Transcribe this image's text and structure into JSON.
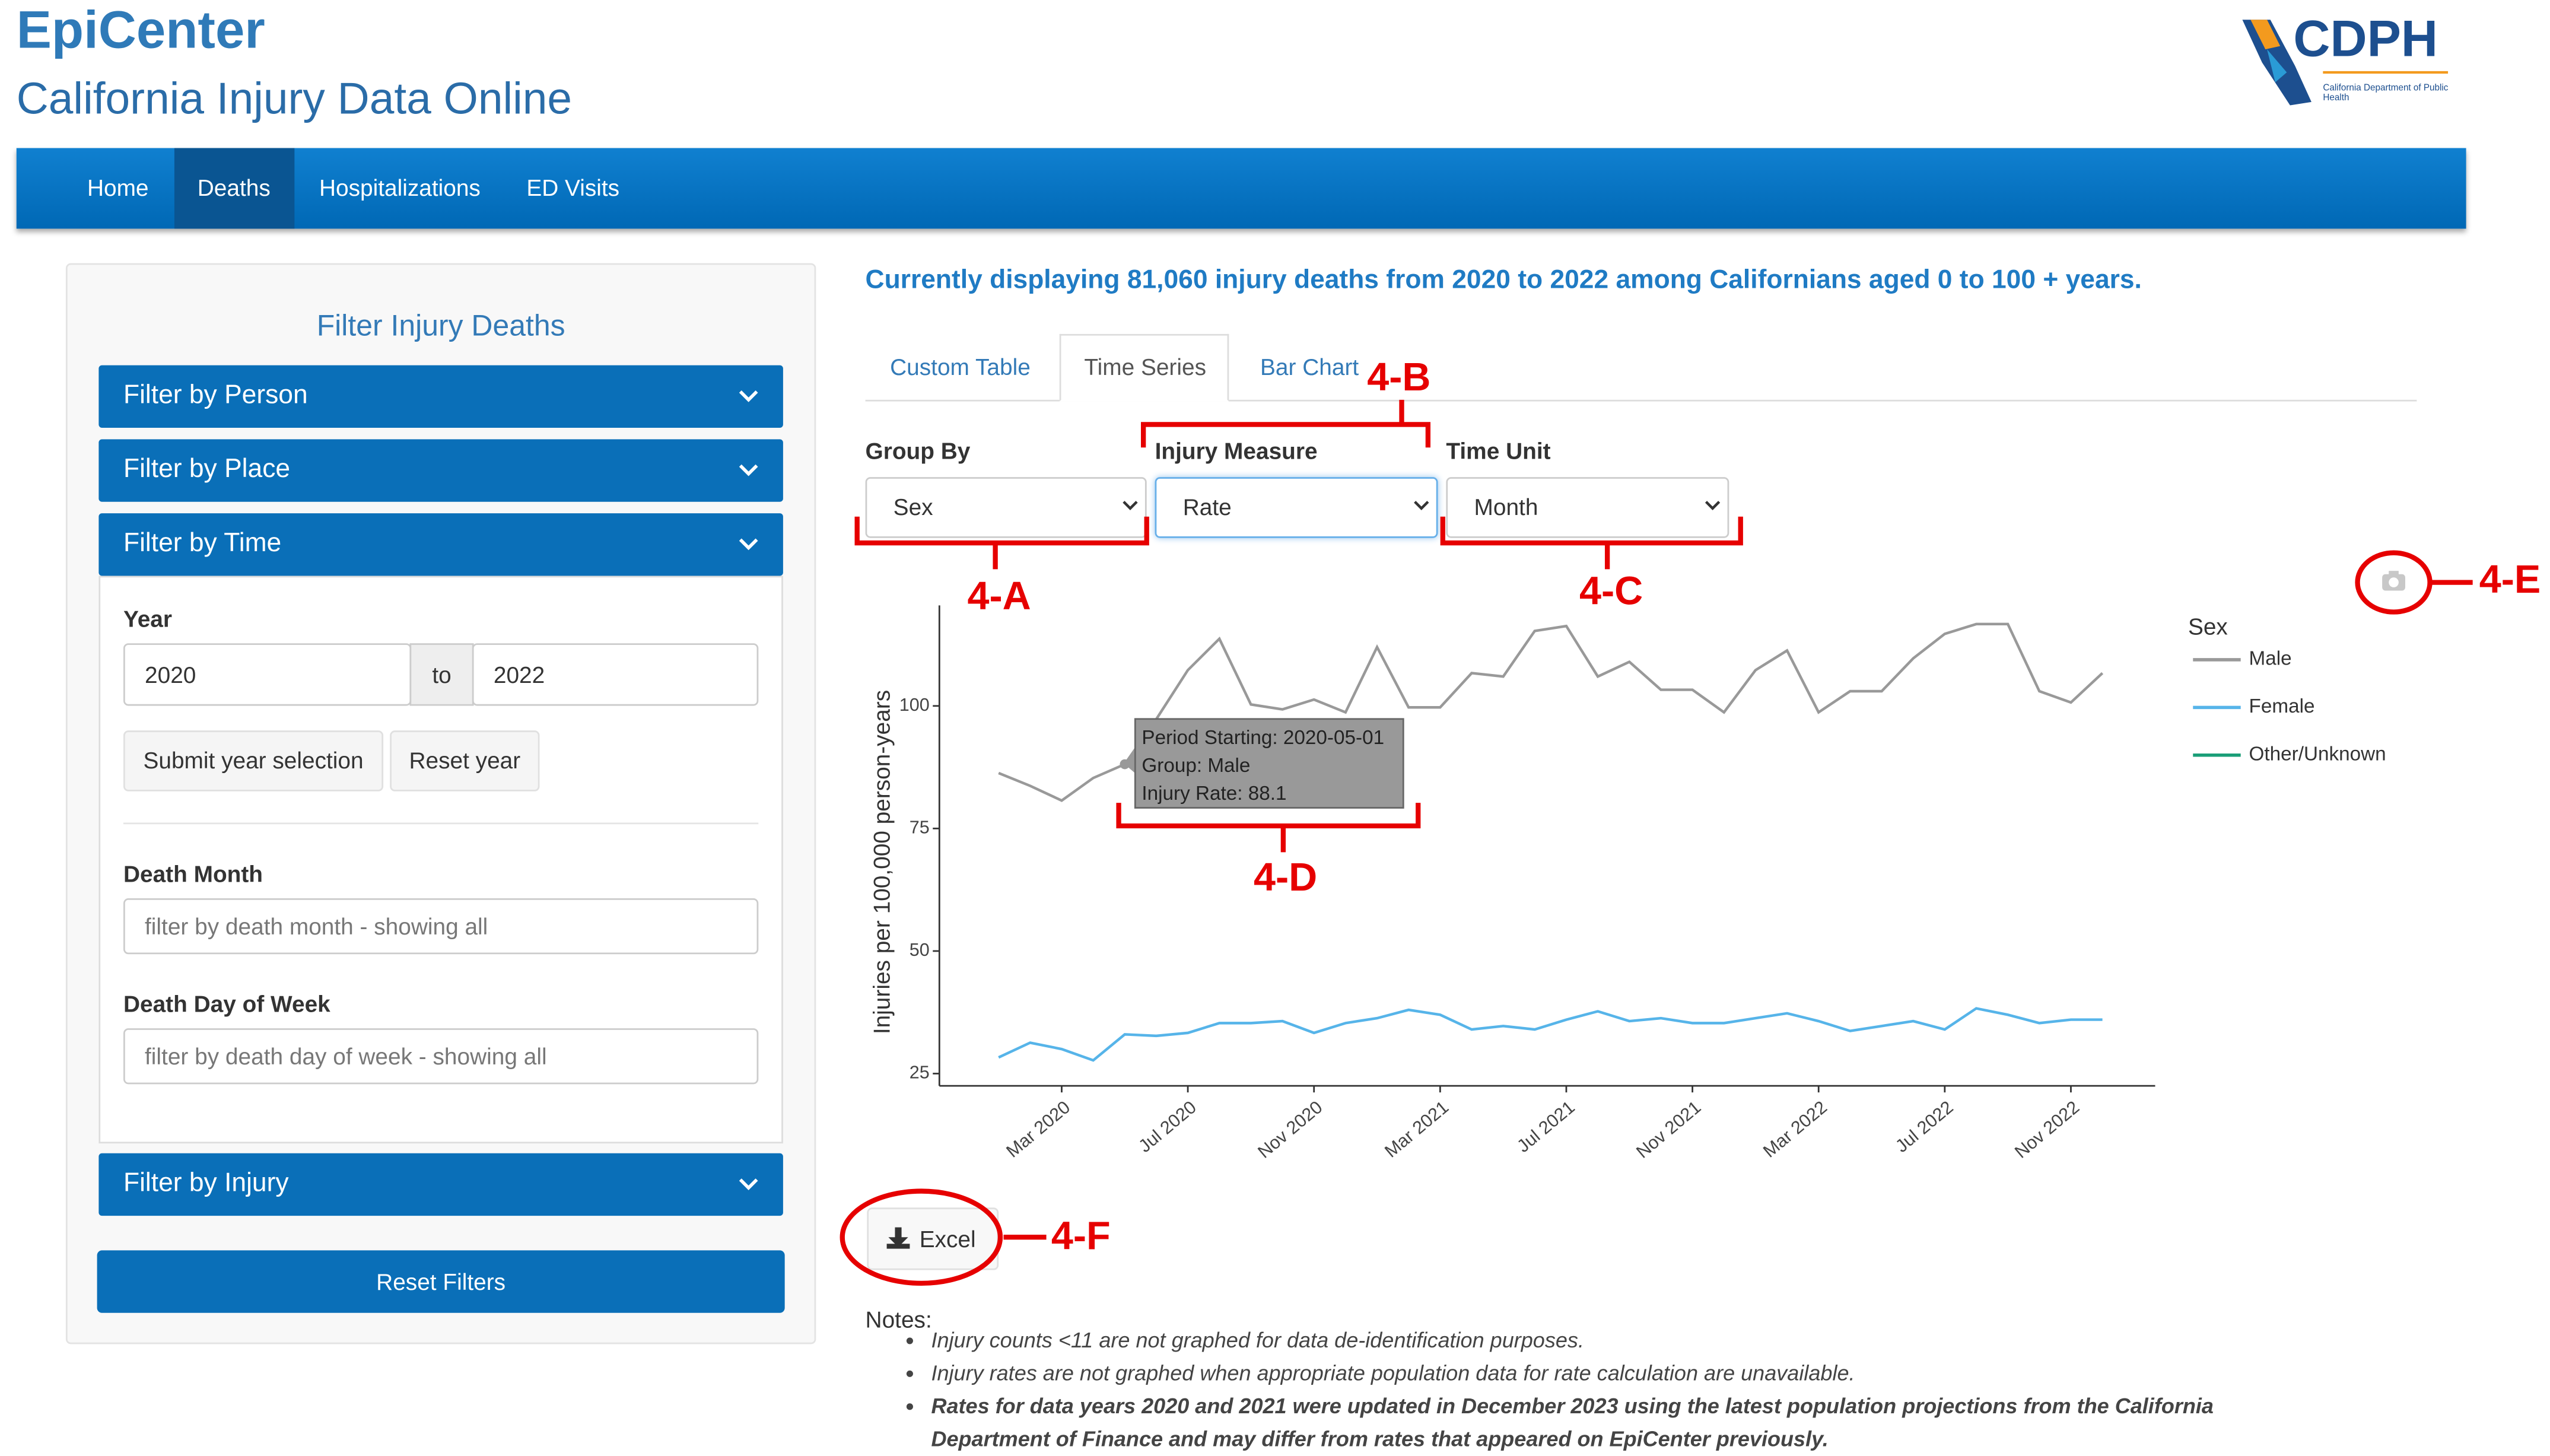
{
  "header": {
    "title": "EpiCenter",
    "subtitle": "California Injury Data Online",
    "logo": "CDPH",
    "logo_sub": "California Department of Public Health"
  },
  "nav": [
    "Home",
    "Deaths",
    "Hospitalizations",
    "ED Visits"
  ],
  "sidebar": {
    "title": "Filter Injury Deaths",
    "sections": [
      "Filter by Person",
      "Filter by Place",
      "Filter by Time"
    ],
    "year_label": "Year",
    "year_from": "2020",
    "year_to_label": "to",
    "year_to": "2022",
    "buttons": [
      "Submit year selection",
      "Reset year"
    ],
    "death_month_label": "Death Month",
    "death_month_placeholder": "filter by death month - showing all",
    "dow_label": "Death Day of Week",
    "dow_placeholder": "filter by death day of week - showing all",
    "injury_section": "Filter by Injury",
    "reset": "Reset Filters"
  },
  "summary": "Currently displaying 81,060 injury deaths from 2020 to 2022 among Californians aged 0 to 100 + years.",
  "tabs": [
    "Custom Table",
    "Time Series",
    "Bar Chart"
  ],
  "controls": [
    {
      "label": "Group By",
      "value": "Sex"
    },
    {
      "label": "Injury Measure",
      "value": "Rate"
    },
    {
      "label": "Time Unit",
      "value": "Month"
    }
  ],
  "chart_data": {
    "type": "line",
    "y_label": "Injuries per 100,000 person-years",
    "legend_title": "Sex",
    "x": [
      "Jan 2020",
      "Feb 2020",
      "Mar 2020",
      "Apr 2020",
      "May 2020",
      "Jun 2020",
      "Jul 2020",
      "Aug 2020",
      "Sep 2020",
      "Oct 2020",
      "Nov 2020",
      "Dec 2020",
      "Jan 2021",
      "Feb 2021",
      "Mar 2021",
      "Apr 2021",
      "May 2021",
      "Jun 2021",
      "Jul 2021",
      "Aug 2021",
      "Sep 2021",
      "Oct 2021",
      "Nov 2021",
      "Dec 2021",
      "Jan 2022",
      "Feb 2022",
      "Mar 2022",
      "Apr 2022",
      "May 2022",
      "Jun 2022",
      "Jul 2022",
      "Aug 2022",
      "Sep 2022",
      "Oct 2022",
      "Nov 2022",
      "Dec 2022"
    ],
    "xticks": [
      "Mar 2020",
      "Jul 2020",
      "Nov 2020",
      "Mar 2021",
      "Jul 2021",
      "Nov 2021",
      "Mar 2022",
      "Jul 2022",
      "Nov 2022"
    ],
    "ylim": [
      22.5,
      120.5
    ],
    "yticks": [
      25,
      50,
      75,
      100
    ],
    "series": [
      {
        "name": "Male",
        "color": "#999999",
        "values": [
          86.3,
          83.7,
          80.7,
          85.3,
          88.1,
          97.3,
          107.3,
          113.7,
          100.3,
          99.3,
          101.3,
          98.7,
          112,
          99.7,
          99.7,
          106.7,
          106,
          115.3,
          116.3,
          106,
          109,
          103.3,
          103.3,
          98.7,
          107.3,
          111.3,
          98.7,
          103,
          103,
          109.7,
          114.7,
          116.7,
          116.7,
          103,
          100.7,
          106.7
        ]
      },
      {
        "name": "Female",
        "color": "#56b4e9",
        "values": [
          28.3,
          31.3,
          30,
          27.7,
          33,
          32.7,
          33.3,
          35.3,
          35.3,
          35.7,
          33.3,
          35.3,
          36.3,
          38,
          37,
          34,
          34.7,
          34,
          36,
          37.7,
          35.7,
          36.3,
          35.3,
          35.3,
          36.3,
          37.3,
          35.7,
          33.7,
          34.7,
          35.7,
          34,
          38.3,
          37,
          35.3,
          36,
          36
        ]
      },
      {
        "name": "Other/Unknown",
        "color": "#1a9e77",
        "values": [
          null,
          null,
          null,
          null,
          null,
          null,
          null,
          null,
          null,
          null,
          null,
          null,
          null,
          null,
          null,
          null,
          null,
          null,
          null,
          null,
          null,
          null,
          null,
          null,
          null,
          null,
          null,
          null,
          null,
          null,
          null,
          null,
          null,
          null,
          null,
          null
        ]
      }
    ]
  },
  "tooltip": {
    "lines": [
      "Period Starting: 2020-05-01",
      "Group: Male",
      "Injury Rate: 88.1"
    ]
  },
  "excel_button": "Excel",
  "notes": {
    "title": "Notes:",
    "items": [
      "Injury counts <11 are not graphed for data de-identification purposes.",
      "Injury rates are not graphed when appropriate population data for rate calculation are unavailable.",
      "Rates for data years 2020 and 2021 were updated in December 2023 using the latest population projections from the California Department of Finance and may differ from rates that appeared on EpiCenter previously."
    ]
  },
  "annotations": [
    "4-A",
    "4-B",
    "4-C",
    "4-D",
    "4-E",
    "4-F"
  ]
}
